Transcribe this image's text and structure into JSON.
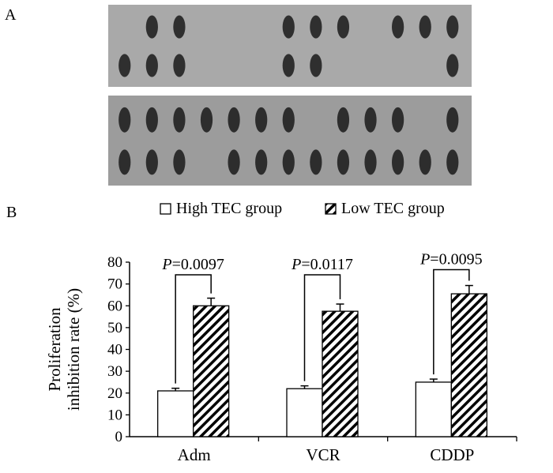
{
  "panels": {
    "a": "A",
    "b": "B"
  },
  "blot": {
    "top_strip": {
      "background": "#a9a9a9",
      "rows": [
        {
          "spots": [
            0,
            1,
            1,
            0,
            0,
            0,
            1,
            1,
            1,
            0,
            1,
            1,
            1
          ]
        },
        {
          "spots": [
            1,
            1,
            1,
            0,
            0,
            0,
            1,
            1,
            0,
            0,
            0,
            0,
            1
          ]
        }
      ]
    },
    "bottom_strip": {
      "background": "#9c9c9c",
      "rows": [
        {
          "spots": [
            1,
            1,
            1,
            1,
            1,
            1,
            1,
            0,
            1,
            1,
            1,
            0,
            1
          ]
        },
        {
          "spots": [
            1,
            1,
            1,
            0,
            1,
            1,
            1,
            1,
            1,
            1,
            1,
            1,
            1
          ]
        }
      ]
    }
  },
  "chart_data": {
    "type": "bar",
    "title": "",
    "xlabel": "",
    "ylabel": "Proliferation inhibition rate (%)",
    "ylabel_lines": [
      "Proliferation",
      "inhibition rate (%)"
    ],
    "ylim": [
      0,
      80
    ],
    "yticks": [
      0,
      10,
      20,
      30,
      40,
      50,
      60,
      70,
      80
    ],
    "categories": [
      "Adm",
      "VCR",
      "CDDP"
    ],
    "series": [
      {
        "name": "High TEC group",
        "values": [
          21,
          22,
          25
        ],
        "errors": [
          1.2,
          1.3,
          1.4
        ],
        "pattern": "solid-white"
      },
      {
        "name": "Low TEC group",
        "values": [
          60,
          57.5,
          65.5
        ],
        "errors": [
          3.5,
          3.3,
          3.8
        ],
        "pattern": "hatched"
      }
    ],
    "annotations": [
      {
        "category": "Adm",
        "prefix": "P",
        "text": "=0.0097"
      },
      {
        "category": "VCR",
        "prefix": "P",
        "text": "=0.0117"
      },
      {
        "category": "CDDP",
        "prefix": "P",
        "text": "=0.0095"
      }
    ],
    "legend": "top",
    "grid": false
  }
}
